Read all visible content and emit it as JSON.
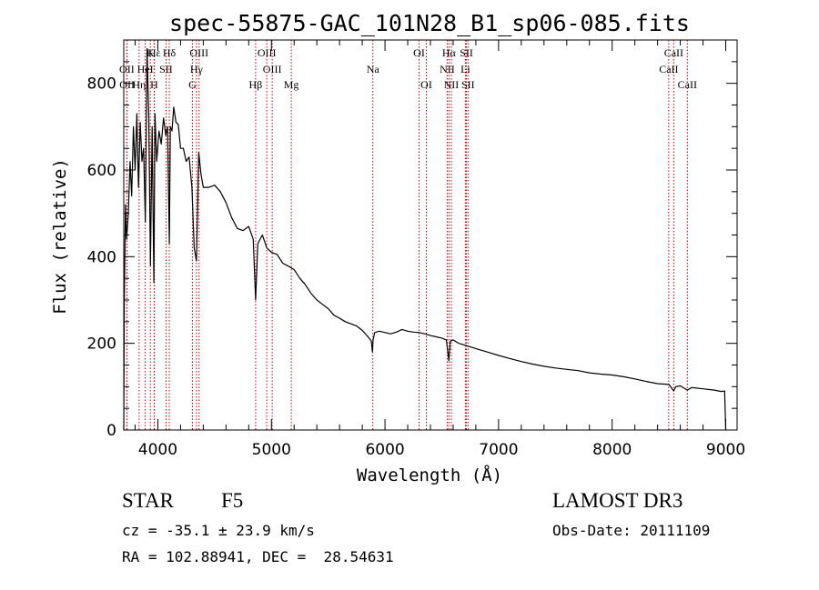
{
  "chart_data": {
    "type": "line",
    "title": "spec-55875-GAC_101N28_B1_sp06-085.fits",
    "xlabel": "Wavelength (Å)",
    "ylabel": "Flux (relative)",
    "xlim": [
      3700,
      9100
    ],
    "ylim": [
      0,
      900
    ],
    "xticks": [
      4000,
      5000,
      6000,
      7000,
      8000,
      9000
    ],
    "yticks": [
      0,
      200,
      400,
      600,
      800
    ],
    "series": [
      {
        "name": "flux",
        "x": [
          3700,
          3705,
          3715,
          3725,
          3740,
          3755,
          3770,
          3785,
          3800,
          3815,
          3830,
          3845,
          3860,
          3875,
          3890,
          3905,
          3920,
          3935,
          3950,
          3965,
          3970,
          3975,
          3990,
          4010,
          4030,
          4050,
          4070,
          4085,
          4101,
          4110,
          4125,
          4140,
          4160,
          4180,
          4200,
          4225,
          4250,
          4275,
          4300,
          4320,
          4340,
          4360,
          4380,
          4400,
          4450,
          4500,
          4550,
          4600,
          4650,
          4700,
          4750,
          4800,
          4840,
          4861,
          4880,
          4920,
          4960,
          5000,
          5050,
          5100,
          5150,
          5200,
          5250,
          5300,
          5350,
          5400,
          5450,
          5500,
          5550,
          5600,
          5650,
          5700,
          5750,
          5800,
          5850,
          5880,
          5889,
          5895,
          5910,
          5950,
          6000,
          6050,
          6100,
          6150,
          6200,
          6250,
          6300,
          6350,
          6400,
          6450,
          6500,
          6540,
          6563,
          6575,
          6600,
          6650,
          6700,
          6800,
          6900,
          7000,
          7100,
          7200,
          7300,
          7400,
          7500,
          7600,
          7700,
          7800,
          7900,
          8000,
          8100,
          8200,
          8300,
          8400,
          8500,
          8542,
          8560,
          8600,
          8662,
          8700,
          8800,
          8900,
          8960,
          8990,
          9000
        ],
        "values": [
          0,
          300,
          520,
          440,
          500,
          620,
          540,
          700,
          600,
          730,
          560,
          710,
          620,
          650,
          480,
          880,
          720,
          380,
          700,
          340,
          540,
          730,
          620,
          690,
          660,
          720,
          680,
          700,
          430,
          700,
          690,
          745,
          710,
          705,
          650,
          650,
          620,
          630,
          560,
          420,
          390,
          640,
          590,
          560,
          560,
          565,
          550,
          525,
          490,
          465,
          460,
          470,
          440,
          300,
          430,
          450,
          420,
          410,
          405,
          385,
          378,
          370,
          350,
          335,
          315,
          300,
          290,
          280,
          265,
          258,
          250,
          245,
          240,
          230,
          215,
          205,
          180,
          208,
          225,
          228,
          225,
          222,
          226,
          232,
          228,
          226,
          225,
          222,
          218,
          215,
          212,
          208,
          160,
          205,
          208,
          200,
          196,
          188,
          180,
          172,
          165,
          158,
          152,
          147,
          143,
          140,
          137,
          132,
          129,
          127,
          123,
          118,
          112,
          107,
          105,
          90,
          100,
          102,
          92,
          98,
          95,
          92,
          89,
          90,
          0
        ]
      }
    ],
    "lines": [
      {
        "label": "Hε",
        "wave": 3970,
        "row": 0
      },
      {
        "label": "K",
        "wave": 3934,
        "row": 0
      },
      {
        "label": "Hδ",
        "wave": 4101,
        "row": 0
      },
      {
        "label": "OIII",
        "wave": 4363,
        "row": 0
      },
      {
        "label": "OIII",
        "wave": 4959,
        "row": 0
      },
      {
        "label": "OI",
        "wave": 6300,
        "row": 0
      },
      {
        "label": "Hα",
        "wave": 6563,
        "row": 0
      },
      {
        "label": "SII",
        "wave": 6717,
        "row": 0
      },
      {
        "label": "CaII",
        "wave": 8542,
        "row": 0
      },
      {
        "label": "OII",
        "wave": 3727,
        "row": 1
      },
      {
        "label": "HeI",
        "wave": 3889,
        "row": 1
      },
      {
        "label": "SII",
        "wave": 4072,
        "row": 1
      },
      {
        "label": "Hγ",
        "wave": 4340,
        "row": 1
      },
      {
        "label": "OIII",
        "wave": 5007,
        "row": 1
      },
      {
        "label": "Na",
        "wave": 5893,
        "row": 1
      },
      {
        "label": "NII",
        "wave": 6548,
        "row": 1
      },
      {
        "label": "Li",
        "wave": 6708,
        "row": 1
      },
      {
        "label": "CaII",
        "wave": 8498,
        "row": 1
      },
      {
        "label": "OII",
        "wave": 3729,
        "row": 2
      },
      {
        "label": "Hη",
        "wave": 3835,
        "row": 2
      },
      {
        "label": "H",
        "wave": 3968,
        "row": 2
      },
      {
        "label": "G",
        "wave": 4305,
        "row": 2
      },
      {
        "label": "Hβ",
        "wave": 4861,
        "row": 2
      },
      {
        "label": "Mg",
        "wave": 5175,
        "row": 2
      },
      {
        "label": "OI",
        "wave": 6364,
        "row": 2
      },
      {
        "label": "NII",
        "wave": 6584,
        "row": 2
      },
      {
        "label": "SII",
        "wave": 6731,
        "row": 2
      },
      {
        "label": "CaII",
        "wave": 8662,
        "row": 2
      }
    ]
  },
  "info": {
    "class": "STAR",
    "subclass": "F5",
    "survey": "LAMOST DR3",
    "redshift": "cz = -35.1 ± 23.9 km/s",
    "obs_date": "Obs-Date: 20111109",
    "coords": "RA = 102.88941, DEC =  28.54631"
  }
}
